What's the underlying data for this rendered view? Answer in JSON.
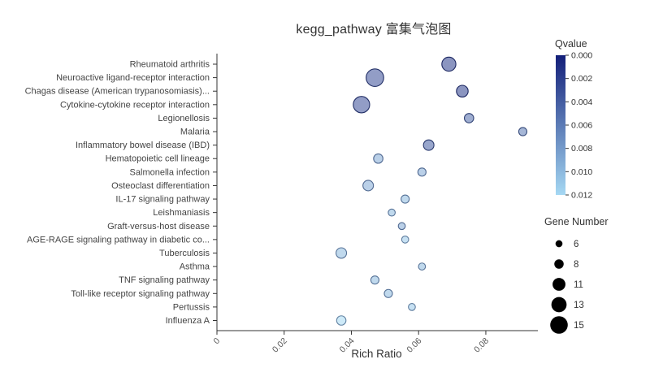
{
  "title": "kegg_pathway 富集气泡图",
  "chart_data": {
    "type": "scatter",
    "title": "kegg_pathway 富集气泡图",
    "xlabel": "Rich Ratio",
    "xlim": [
      0,
      0.095
    ],
    "xticks": [
      0,
      0.02,
      0.04,
      0.06,
      0.08
    ],
    "xtick_labels": [
      "0",
      "0.02",
      "0.04",
      "0.06",
      "0.08"
    ],
    "legend_position": "right",
    "grid": false,
    "color_legend": {
      "title": "Qvalue",
      "min": 0,
      "max": 0.012,
      "tick_labels": [
        "0.000",
        "0.002",
        "0.004",
        "0.006",
        "0.008",
        "0.010",
        "0.012"
      ],
      "color_dark": "#131f79",
      "color_light": "#a5d8f3"
    },
    "size_legend": {
      "title": "Gene Number",
      "values": [
        6,
        8,
        11,
        13,
        15
      ]
    },
    "points": [
      {
        "pathway": "Rheumatoid arthritis",
        "rich_ratio": 0.069,
        "qvalue": 0.002,
        "gene_number": 12
      },
      {
        "pathway": "Neuroactive ligand-receptor interaction",
        "rich_ratio": 0.047,
        "qvalue": 0.003,
        "gene_number": 15
      },
      {
        "pathway": "Chagas disease (American trypanosomiasis)...",
        "rich_ratio": 0.073,
        "qvalue": 0.002,
        "gene_number": 10
      },
      {
        "pathway": "Cytokine-cytokine receptor interaction",
        "rich_ratio": 0.043,
        "qvalue": 0.003,
        "gene_number": 14
      },
      {
        "pathway": "Legionellosis",
        "rich_ratio": 0.075,
        "qvalue": 0.005,
        "gene_number": 8
      },
      {
        "pathway": "Malaria",
        "rich_ratio": 0.091,
        "qvalue": 0.006,
        "gene_number": 7
      },
      {
        "pathway": "Inflammatory bowel disease (IBD)",
        "rich_ratio": 0.063,
        "qvalue": 0.004,
        "gene_number": 9
      },
      {
        "pathway": "Hematopoietic cell lineage",
        "rich_ratio": 0.048,
        "qvalue": 0.009,
        "gene_number": 8
      },
      {
        "pathway": "Salmonella infection",
        "rich_ratio": 0.061,
        "qvalue": 0.009,
        "gene_number": 7
      },
      {
        "pathway": "Osteoclast differentiation",
        "rich_ratio": 0.045,
        "qvalue": 0.009,
        "gene_number": 9
      },
      {
        "pathway": "IL-17 signaling pathway",
        "rich_ratio": 0.056,
        "qvalue": 0.01,
        "gene_number": 7
      },
      {
        "pathway": "Leishmaniasis",
        "rich_ratio": 0.052,
        "qvalue": 0.01,
        "gene_number": 6
      },
      {
        "pathway": "Graft-versus-host disease",
        "rich_ratio": 0.055,
        "qvalue": 0.009,
        "gene_number": 6
      },
      {
        "pathway": "AGE-RAGE signaling pathway in diabetic co...",
        "rich_ratio": 0.056,
        "qvalue": 0.011,
        "gene_number": 6
      },
      {
        "pathway": "Tuberculosis",
        "rich_ratio": 0.037,
        "qvalue": 0.01,
        "gene_number": 9
      },
      {
        "pathway": "Asthma",
        "rich_ratio": 0.061,
        "qvalue": 0.01,
        "gene_number": 6
      },
      {
        "pathway": "TNF signaling pathway",
        "rich_ratio": 0.047,
        "qvalue": 0.01,
        "gene_number": 7
      },
      {
        "pathway": "Toll-like receptor signaling pathway",
        "rich_ratio": 0.051,
        "qvalue": 0.01,
        "gene_number": 7
      },
      {
        "pathway": "Pertussis",
        "rich_ratio": 0.058,
        "qvalue": 0.011,
        "gene_number": 6
      },
      {
        "pathway": "Influenza A",
        "rich_ratio": 0.037,
        "qvalue": 0.012,
        "gene_number": 8
      }
    ]
  }
}
